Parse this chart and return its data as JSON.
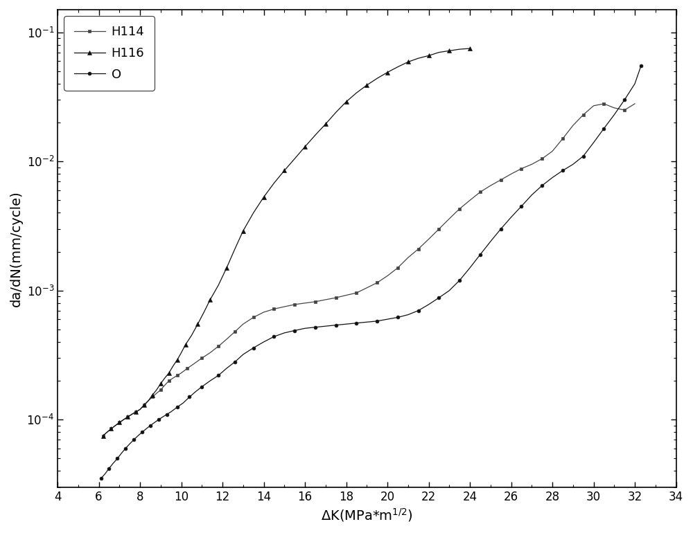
{
  "title": "",
  "xlabel": "ΔK(MPa*m¹²)",
  "ylabel": "da/dN(mm/cycle)",
  "xlim": [
    4,
    34
  ],
  "ylim": [
    3e-05,
    0.15
  ],
  "xticks": [
    4,
    6,
    8,
    10,
    12,
    14,
    16,
    18,
    20,
    22,
    24,
    26,
    28,
    30,
    32,
    34
  ],
  "legend_labels": [
    "H114",
    "H116",
    "O"
  ],
  "background_color": "#ffffff",
  "figsize": [
    10.0,
    7.7
  ],
  "dpi": 100,
  "H114_x": [
    6.2,
    6.4,
    6.6,
    6.8,
    7.0,
    7.2,
    7.4,
    7.6,
    7.8,
    8.0,
    8.2,
    8.4,
    8.6,
    8.8,
    9.0,
    9.2,
    9.4,
    9.6,
    9.8,
    10.0,
    10.3,
    10.6,
    11.0,
    11.4,
    11.8,
    12.2,
    12.6,
    13.0,
    13.5,
    14.0,
    14.5,
    15.0,
    15.5,
    16.0,
    16.5,
    17.0,
    17.5,
    18.0,
    18.5,
    19.0,
    19.5,
    20.0,
    20.5,
    21.0,
    21.5,
    22.0,
    22.5,
    23.0,
    23.5,
    24.0,
    24.5,
    25.0,
    25.5,
    26.0,
    26.5,
    27.0,
    27.5,
    28.0,
    28.5,
    29.0,
    29.5,
    30.0,
    30.5,
    31.0,
    31.5,
    32.0
  ],
  "H114_y": [
    7.5e-05,
    8e-05,
    8.5e-05,
    9e-05,
    9.5e-05,
    0.0001,
    0.000105,
    0.00011,
    0.000115,
    0.00012,
    0.00013,
    0.00014,
    0.00015,
    0.00016,
    0.00017,
    0.000185,
    0.0002,
    0.00021,
    0.00022,
    0.00023,
    0.00025,
    0.00027,
    0.0003,
    0.00033,
    0.00037,
    0.00042,
    0.00048,
    0.00055,
    0.00062,
    0.00068,
    0.00072,
    0.00075,
    0.00078,
    0.0008,
    0.00082,
    0.00085,
    0.00088,
    0.00092,
    0.00096,
    0.00105,
    0.00115,
    0.0013,
    0.0015,
    0.0018,
    0.0021,
    0.0025,
    0.003,
    0.0036,
    0.0043,
    0.005,
    0.0058,
    0.0065,
    0.0072,
    0.008,
    0.0088,
    0.0095,
    0.0105,
    0.012,
    0.015,
    0.019,
    0.023,
    0.027,
    0.028,
    0.026,
    0.025,
    0.028
  ],
  "H116_x": [
    6.2,
    6.4,
    6.6,
    6.8,
    7.0,
    7.2,
    7.4,
    7.6,
    7.8,
    8.0,
    8.2,
    8.4,
    8.6,
    8.8,
    9.0,
    9.2,
    9.4,
    9.6,
    9.8,
    10.0,
    10.2,
    10.5,
    10.8,
    11.1,
    11.4,
    11.8,
    12.2,
    12.6,
    13.0,
    13.5,
    14.0,
    14.5,
    15.0,
    15.5,
    16.0,
    16.5,
    17.0,
    17.5,
    18.0,
    18.5,
    19.0,
    19.5,
    20.0,
    20.5,
    21.0,
    21.5,
    22.0,
    22.5,
    23.0,
    23.5,
    24.0
  ],
  "H116_y": [
    7.5e-05,
    8e-05,
    8.5e-05,
    9e-05,
    9.5e-05,
    0.0001,
    0.000105,
    0.00011,
    0.000115,
    0.00012,
    0.00013,
    0.00014,
    0.000155,
    0.00017,
    0.00019,
    0.00021,
    0.00023,
    0.00026,
    0.00029,
    0.00033,
    0.00038,
    0.00045,
    0.00055,
    0.00068,
    0.00085,
    0.0011,
    0.0015,
    0.0021,
    0.0029,
    0.004,
    0.0053,
    0.0068,
    0.0085,
    0.0105,
    0.013,
    0.016,
    0.0195,
    0.024,
    0.029,
    0.034,
    0.039,
    0.044,
    0.049,
    0.054,
    0.059,
    0.063,
    0.066,
    0.07,
    0.072,
    0.074,
    0.075
  ],
  "O_x": [
    6.1,
    6.3,
    6.5,
    6.7,
    6.9,
    7.1,
    7.3,
    7.5,
    7.7,
    7.9,
    8.1,
    8.3,
    8.5,
    8.7,
    8.9,
    9.1,
    9.3,
    9.5,
    9.8,
    10.1,
    10.4,
    10.7,
    11.0,
    11.4,
    11.8,
    12.2,
    12.6,
    13.0,
    13.5,
    14.0,
    14.5,
    15.0,
    15.5,
    16.0,
    16.5,
    17.0,
    17.5,
    18.0,
    18.5,
    19.0,
    19.5,
    20.0,
    20.5,
    21.0,
    21.5,
    22.0,
    22.5,
    23.0,
    23.5,
    24.0,
    24.5,
    25.0,
    25.5,
    26.0,
    26.5,
    27.0,
    27.5,
    28.0,
    28.5,
    29.0,
    29.5,
    30.0,
    30.5,
    31.0,
    31.5,
    32.0,
    32.3
  ],
  "O_y": [
    3.5e-05,
    3.8e-05,
    4.2e-05,
    4.6e-05,
    5e-05,
    5.5e-05,
    6e-05,
    6.5e-05,
    7e-05,
    7.5e-05,
    8e-05,
    8.5e-05,
    9e-05,
    9.5e-05,
    0.0001,
    0.000105,
    0.00011,
    0.000115,
    0.000125,
    0.000135,
    0.00015,
    0.000165,
    0.00018,
    0.0002,
    0.00022,
    0.00025,
    0.00028,
    0.00032,
    0.00036,
    0.0004,
    0.00044,
    0.00047,
    0.00049,
    0.00051,
    0.00052,
    0.00053,
    0.00054,
    0.00055,
    0.00056,
    0.00057,
    0.00058,
    0.0006,
    0.00062,
    0.00065,
    0.0007,
    0.00078,
    0.00088,
    0.001,
    0.0012,
    0.0015,
    0.0019,
    0.0024,
    0.003,
    0.0037,
    0.0045,
    0.0055,
    0.0065,
    0.0075,
    0.0085,
    0.0095,
    0.011,
    0.014,
    0.018,
    0.023,
    0.03,
    0.04,
    0.055
  ]
}
